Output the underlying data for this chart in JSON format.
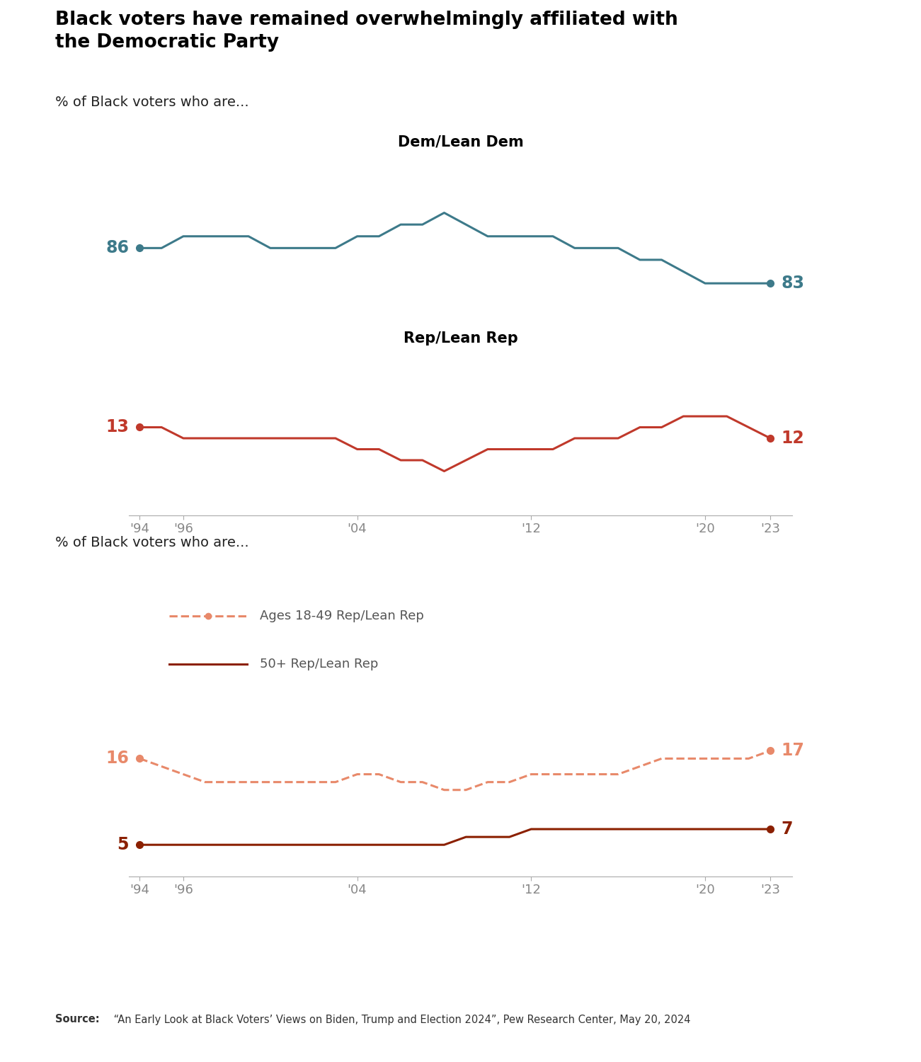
{
  "title": "Black voters have remained overwhelmingly affiliated with\nthe Democratic Party",
  "subtitle1": "% of Black voters who are...",
  "subtitle2": "% of Black voters who are...",
  "chart1_title": "Dem/Lean Dem",
  "chart2_title": "Rep/Lean Rep",
  "x_ticks": [
    "'94",
    "'96",
    "'04",
    "'12",
    "'20",
    "'23"
  ],
  "x_tick_positions": [
    1994,
    1996,
    2004,
    2012,
    2020,
    2023
  ],
  "dem_years": [
    1994,
    1995,
    1996,
    1997,
    1998,
    1999,
    2000,
    2001,
    2002,
    2003,
    2004,
    2005,
    2006,
    2007,
    2008,
    2009,
    2010,
    2011,
    2012,
    2013,
    2014,
    2015,
    2016,
    2017,
    2018,
    2019,
    2020,
    2021,
    2022,
    2023
  ],
  "dem_values": [
    86,
    86,
    87,
    87,
    87,
    87,
    86,
    86,
    86,
    86,
    87,
    87,
    88,
    88,
    89,
    88,
    87,
    87,
    87,
    87,
    86,
    86,
    86,
    85,
    85,
    84,
    83,
    83,
    83,
    83
  ],
  "rep_years": [
    1994,
    1995,
    1996,
    1997,
    1998,
    1999,
    2000,
    2001,
    2002,
    2003,
    2004,
    2005,
    2006,
    2007,
    2008,
    2009,
    2010,
    2011,
    2012,
    2013,
    2014,
    2015,
    2016,
    2017,
    2018,
    2019,
    2020,
    2021,
    2022,
    2023
  ],
  "rep_values": [
    13,
    13,
    12,
    12,
    12,
    12,
    12,
    12,
    12,
    12,
    11,
    11,
    10,
    10,
    9,
    10,
    11,
    11,
    11,
    11,
    12,
    12,
    12,
    13,
    13,
    14,
    14,
    14,
    13,
    12
  ],
  "young_years": [
    1994,
    1995,
    1996,
    1997,
    1998,
    1999,
    2000,
    2001,
    2002,
    2003,
    2004,
    2005,
    2006,
    2007,
    2008,
    2009,
    2010,
    2011,
    2012,
    2013,
    2014,
    2015,
    2016,
    2017,
    2018,
    2019,
    2020,
    2021,
    2022,
    2023
  ],
  "young_values": [
    16,
    15,
    14,
    13,
    13,
    13,
    13,
    13,
    13,
    13,
    14,
    14,
    13,
    13,
    12,
    12,
    13,
    13,
    14,
    14,
    14,
    14,
    14,
    15,
    16,
    16,
    16,
    16,
    16,
    17
  ],
  "old_years": [
    1994,
    1995,
    1996,
    1997,
    1998,
    1999,
    2000,
    2001,
    2002,
    2003,
    2004,
    2005,
    2006,
    2007,
    2008,
    2009,
    2010,
    2011,
    2012,
    2013,
    2014,
    2015,
    2016,
    2017,
    2018,
    2019,
    2020,
    2021,
    2022,
    2023
  ],
  "old_values": [
    5,
    5,
    5,
    5,
    5,
    5,
    5,
    5,
    5,
    5,
    5,
    5,
    5,
    5,
    5,
    6,
    6,
    6,
    7,
    7,
    7,
    7,
    7,
    7,
    7,
    7,
    7,
    7,
    7,
    7
  ],
  "dem_color": "#3d7a8a",
  "rep_color": "#c0392b",
  "young_color": "#e8896a",
  "old_color": "#8b2000",
  "dem_start_label": "86",
  "dem_end_label": "83",
  "rep_start_label": "13",
  "rep_end_label": "12",
  "young_start_label": "16",
  "young_end_label": "17",
  "old_start_label": "5",
  "old_end_label": "7",
  "legend_young": "Ages 18-49 Rep/Lean Rep",
  "legend_old": "50+ Rep/Lean Rep",
  "background_color": "#ffffff",
  "tick_color": "#aaaaaa",
  "tick_label_color": "#888888",
  "source_bold": "Source:",
  "source_rest": " “An Early Look at Black Voters’ Views on Biden, Trump and Election 2024”, Pew Research Center, May 20, 2024"
}
